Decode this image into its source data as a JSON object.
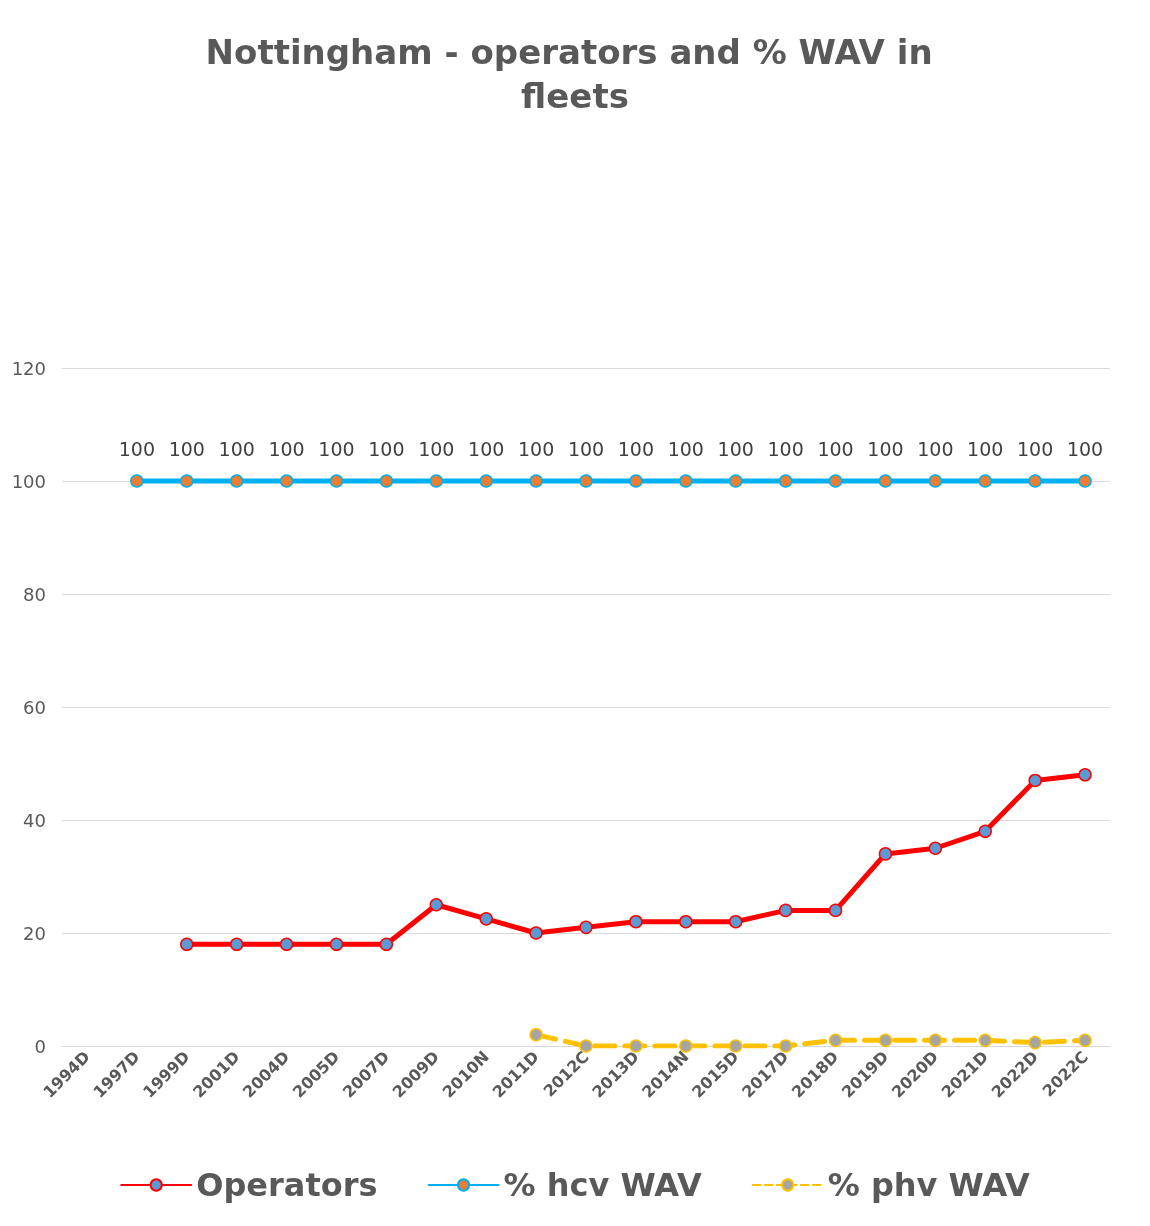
{
  "chart_data": {
    "type": "line",
    "title": "Nottingham - operators and % WAV in fleets",
    "categories": [
      "1994D",
      "1997D",
      "1999D",
      "2001D",
      "2004D",
      "2005D",
      "2007D",
      "2009D",
      "2010N",
      "2011D",
      "2012C",
      "2013D",
      "2014N",
      "2015D",
      "2017D",
      "2018D",
      "2019D",
      "2020D",
      "2021D",
      "2022D",
      "2022C"
    ],
    "series": [
      {
        "name": "Operators",
        "color": "#ff0000",
        "line_style": "solid",
        "values": [
          null,
          null,
          18,
          18,
          18,
          18,
          18,
          25,
          22.5,
          20,
          21,
          22,
          22,
          22,
          24,
          24,
          34,
          35,
          38,
          47,
          48
        ]
      },
      {
        "name": "% hcv WAV",
        "color": "#00b0f0",
        "line_style": "solid",
        "values": [
          null,
          100,
          100,
          100,
          100,
          100,
          100,
          100,
          100,
          100,
          100,
          100,
          100,
          100,
          100,
          100,
          100,
          100,
          100,
          100,
          100
        ],
        "value_labels": [
          null,
          "100",
          "100",
          "100",
          "100",
          "100",
          "100",
          "100",
          "100",
          "100",
          "100",
          "100",
          "100",
          "100",
          "100",
          "100",
          "100",
          "100",
          "100",
          "100",
          "100"
        ]
      },
      {
        "name": "% phv WAV",
        "color": "#ffc000",
        "line_style": "dashed",
        "values": [
          null,
          null,
          null,
          null,
          null,
          null,
          null,
          null,
          null,
          2,
          0,
          0,
          0,
          0,
          0,
          1,
          1,
          1,
          1,
          0.6,
          1
        ]
      }
    ],
    "ylim": [
      0,
      120
    ],
    "yticks": [
      0,
      20,
      40,
      60,
      80,
      100,
      120
    ],
    "grid": "y",
    "legend": "bottom",
    "marker": "circle"
  }
}
